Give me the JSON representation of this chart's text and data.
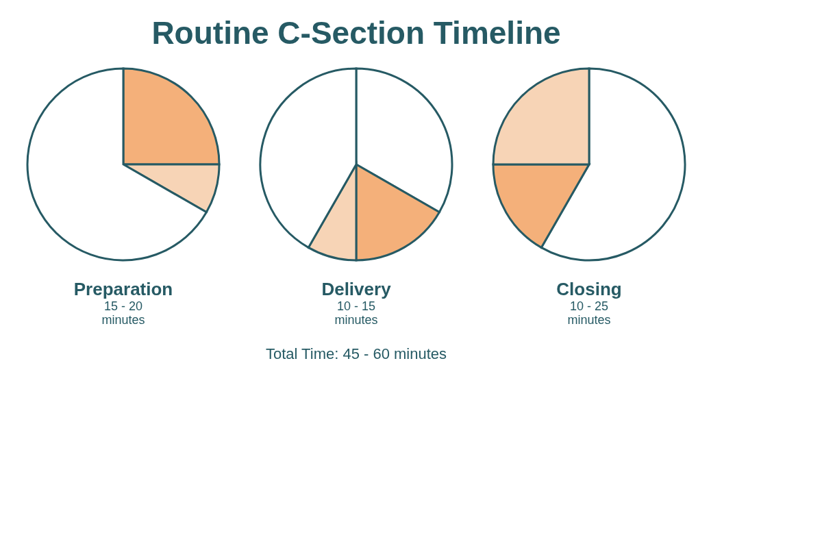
{
  "chart_data": [
    {
      "type": "other",
      "title": "Routine C-Section Timeline"
    },
    {
      "type": "pie",
      "title": "Preparation",
      "annotations": [
        "15 - 20",
        "minutes"
      ],
      "categories": [
        null,
        null,
        null
      ],
      "values": [
        25,
        8.3,
        66.7
      ],
      "colors": [
        "#f4b07a",
        "#f7d4b6",
        "#ffffff"
      ],
      "legend": false
    },
    {
      "type": "pie",
      "title": "Delivery",
      "annotations": [
        "10 - 15",
        "minutes"
      ],
      "categories": [
        null,
        null,
        null,
        null
      ],
      "values": [
        33.3,
        16.7,
        8.3,
        41.7
      ],
      "colors": [
        "#ffffff",
        "#f4b07a",
        "#f7d4b6",
        "#ffffff"
      ],
      "legend": false
    },
    {
      "type": "pie",
      "title": "Closing",
      "annotations": [
        "10 - 25",
        "minutes"
      ],
      "categories": [
        null,
        null,
        null
      ],
      "values": [
        58.3,
        16.7,
        25
      ],
      "colors": [
        "#ffffff",
        "#f4b07a",
        "#f7d4b6"
      ],
      "legend": false
    },
    {
      "type": "other",
      "annotations": [
        "Total Time:  45 - 60 minutes"
      ]
    }
  ]
}
